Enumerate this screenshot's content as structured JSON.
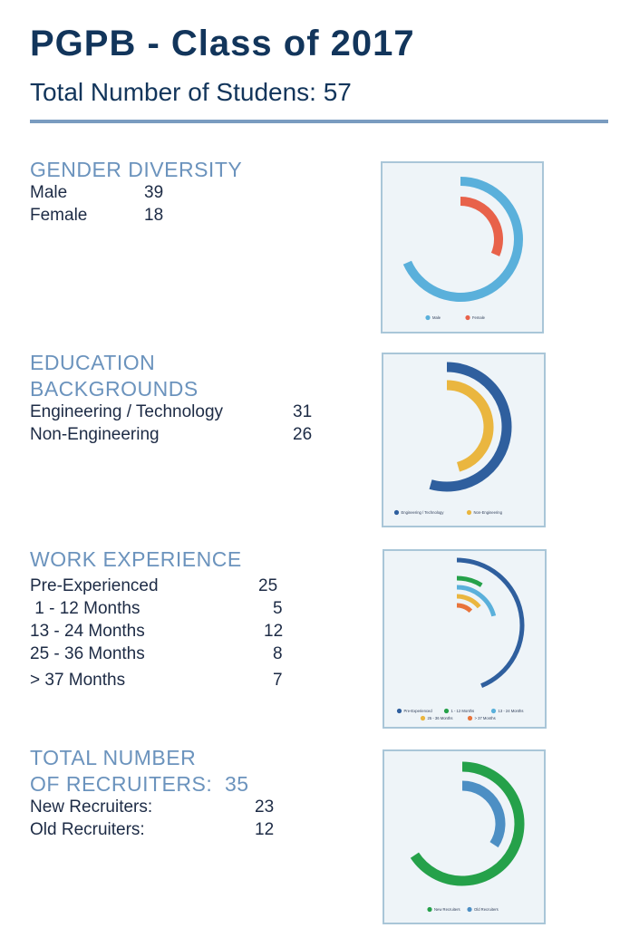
{
  "header": {
    "title": "PGPB - Class of 2017",
    "subtitle": "Total Number of Studens: 57"
  },
  "sections": [
    {
      "heading_lines": [
        "GENDER DIVERSITY"
      ],
      "rows": [
        {
          "label": "Male",
          "value": "39"
        },
        {
          "label": "Female",
          "value": "18"
        }
      ]
    },
    {
      "heading_lines": [
        "EDUCATION",
        "BACKGROUNDS"
      ],
      "rows": [
        {
          "label": "Engineering / Technology",
          "value": "31"
        },
        {
          "label": "Non-Engineering",
          "value": "26"
        }
      ]
    },
    {
      "heading_lines": [
        "WORK EXPERIENCE"
      ],
      "rows": [
        {
          "label": "Pre-Experienced",
          "value": "25"
        },
        {
          "label": " 1 - 12 Months",
          "value": "5"
        },
        {
          "label": "13 - 24 Months",
          "value": "12"
        },
        {
          "label": "25 - 36 Months",
          "value": "8"
        },
        {
          "label": "> 37 Months",
          "value": "7"
        }
      ]
    },
    {
      "heading_lines": [
        "TOTAL NUMBER",
        "OF RECRUITERS:  35"
      ],
      "rows": [
        {
          "label": "New Recruiters:",
          "value": "23"
        },
        {
          "label": "Old Recruiters:",
          "value": "12"
        }
      ]
    }
  ],
  "chart_data": [
    {
      "type": "radial_bar",
      "categories": [
        "Male",
        "Female"
      ],
      "values": [
        39,
        18
      ],
      "total": 57,
      "colors": [
        "#5ab0db",
        "#e8624a"
      ],
      "legend_position": "bottom"
    },
    {
      "type": "radial_bar",
      "categories": [
        "Engineering / Technology",
        "Non-Engineering"
      ],
      "values": [
        31,
        26
      ],
      "total": 57,
      "colors": [
        "#2f5f9e",
        "#eab63f"
      ],
      "legend_position": "bottom"
    },
    {
      "type": "radial_bar",
      "categories": [
        "Pre-Experienced",
        "1 - 12 Months",
        "13 - 24 Months",
        "25 - 36 Months",
        "> 37 Months"
      ],
      "values": [
        25,
        5,
        12,
        8,
        7
      ],
      "total": 57,
      "colors": [
        "#2f5f9e",
        "#25a14a",
        "#5ab0db",
        "#eab63f",
        "#e8743b"
      ],
      "legend_position": "bottom"
    },
    {
      "type": "radial_bar",
      "categories": [
        "New Recruiters",
        "Old Recruiters"
      ],
      "values": [
        23,
        12
      ],
      "total": 35,
      "colors": [
        "#25a14a",
        "#4d8fc4"
      ],
      "legend_position": "bottom"
    }
  ]
}
